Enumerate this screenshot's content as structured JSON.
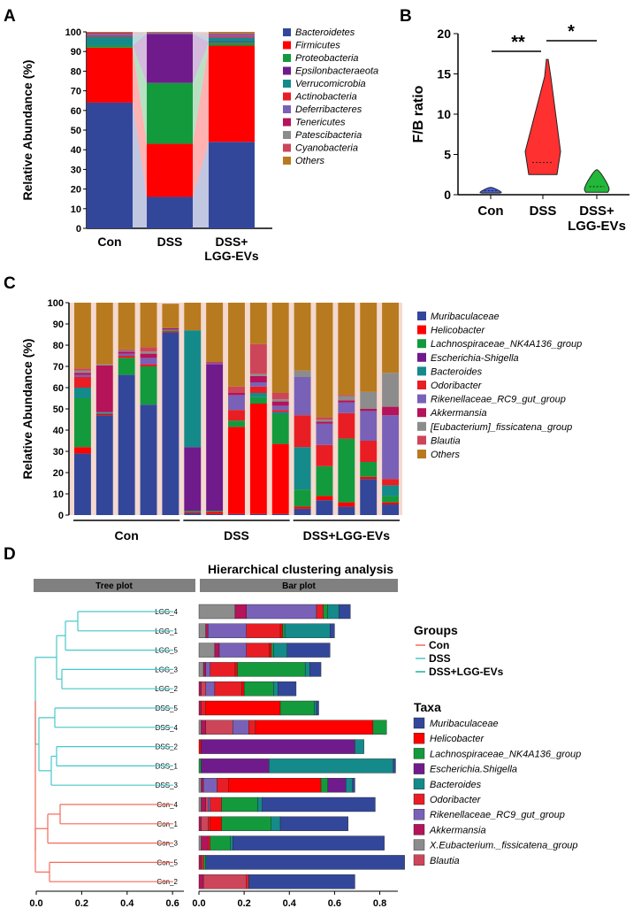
{
  "colors": {
    "Bacteroidetes": "#33479a",
    "Firmicutes": "#ff0000",
    "Proteobacteria": "#139a3c",
    "Epsilonbacteraeota": "#701b8c",
    "Verrucomicrobia": "#148a8a",
    "Actinobacteria": "#e81e24",
    "Deferribacteres": "#7961b8",
    "Tenericutes": "#b5135a",
    "Patescibacteria": "#8c8c8c",
    "Cyanobacteria": "#cd4559",
    "Others": "#b87a1e",
    "Muribaculaceae": "#33479a",
    "Helicobacter": "#ff0000",
    "Lachnospiraceae_NK4A136_group": "#139a3c",
    "Escherichia-Shigella": "#701b8c",
    "Bacteroides": "#148a8a",
    "Odoribacter": "#e81e24",
    "Rikenellaceae_RC9_gut_group": "#7961b8",
    "Akkermansia": "#b5135a",
    "[Eubacterium]_fissicatena_group": "#8c8c8c",
    "Blautia": "#cd4559",
    "Con": "#f36a5a",
    "DSS": "#47c7c9",
    "DSS+LGG-EVs": "#1fb0a3"
  },
  "panels": {
    "A": "A",
    "B": "B",
    "C": "C",
    "D": "D"
  },
  "chart_data": [
    {
      "id": "A",
      "type": "bar",
      "stacked": true,
      "title": "",
      "xlabel": "",
      "ylabel": "Relative Abundance (%)",
      "ylim": [
        0,
        100
      ],
      "yticks": [
        "0",
        "10",
        "20",
        "30",
        "40",
        "50",
        "60",
        "70",
        "80",
        "90",
        "100"
      ],
      "categories": [
        [
          "Con"
        ],
        [
          "DSS"
        ],
        [
          "DSS+",
          "LGG-EVs"
        ]
      ],
      "series": [
        {
          "name": "Bacteroidetes",
          "values": [
            64,
            16,
            44
          ]
        },
        {
          "name": "Firmicutes",
          "values": [
            28,
            27,
            49
          ]
        },
        {
          "name": "Proteobacteria",
          "values": [
            1,
            31,
            1.5
          ]
        },
        {
          "name": "Epsilonbacteraeota",
          "values": [
            0,
            25,
            0.5
          ]
        },
        {
          "name": "Verrucomicrobia",
          "values": [
            4.5,
            0,
            2
          ]
        },
        {
          "name": "Actinobacteria",
          "values": [
            0.5,
            0,
            0.5
          ]
        },
        {
          "name": "Deferribacteres",
          "values": [
            1,
            0.5,
            1
          ]
        },
        {
          "name": "Tenericutes",
          "values": [
            0.5,
            0,
            0.5
          ]
        },
        {
          "name": "Patescibacteria",
          "values": [
            0,
            0,
            0.3
          ]
        },
        {
          "name": "Cyanobacteria",
          "values": [
            0,
            0,
            0
          ]
        },
        {
          "name": "Others",
          "values": [
            0.5,
            0.5,
            0.7
          ]
        }
      ]
    },
    {
      "id": "B",
      "type": "violin",
      "title": "",
      "ylabel": "F/B ratio",
      "ylim": [
        0,
        20
      ],
      "yticks": [
        "0",
        "5",
        "10",
        "15",
        "20"
      ],
      "categories": [
        [
          "Con"
        ],
        [
          "DSS"
        ],
        [
          "DSS+",
          "LGG-EVs"
        ]
      ],
      "groups": [
        {
          "name": "Con",
          "min": 0.2,
          "max": 0.9,
          "median": 0.5,
          "color": "#4a5fd6"
        },
        {
          "name": "DSS",
          "min": 2.5,
          "max": 16.8,
          "median": 4,
          "color": "#ff3030"
        },
        {
          "name": "DSS+LGG-EVs",
          "min": 0.3,
          "max": 3.1,
          "median": 1,
          "color": "#22b83a"
        }
      ],
      "annotations": [
        "**",
        "*"
      ]
    },
    {
      "id": "C",
      "type": "bar",
      "stacked": true,
      "title": "",
      "ylabel": "Relative Abundance (%)",
      "ylim": [
        0,
        100
      ],
      "yticks": [
        "0",
        "10",
        "20",
        "30",
        "40",
        "50",
        "60",
        "70",
        "80",
        "90",
        "100"
      ],
      "group_labels": [
        "Con",
        "DSS",
        "DSS+LGG-EVs"
      ],
      "series": [
        {
          "name": "Muribaculaceae",
          "values": [
            29,
            47,
            66,
            52,
            86,
            1,
            0.5,
            0.5,
            0.5,
            0.5,
            3,
            7,
            4,
            17,
            5
          ]
        },
        {
          "name": "Helicobacter",
          "values": [
            3,
            0.5,
            0,
            0,
            0.5,
            0.5,
            1,
            41,
            52,
            33,
            1,
            2,
            2,
            1,
            1
          ]
        },
        {
          "name": "Lachnospiraceae_NK4A136_group",
          "values": [
            23,
            0.5,
            8,
            18,
            0.5,
            0.5,
            0.5,
            3,
            3,
            14,
            8,
            14,
            30,
            7,
            3
          ]
        },
        {
          "name": "Escherichia-Shigella",
          "values": [
            0,
            0,
            0,
            0,
            0,
            30,
            69,
            0,
            0,
            0,
            0,
            0,
            0,
            0,
            0
          ]
        },
        {
          "name": "Bacteroides",
          "values": [
            5,
            0,
            0,
            0,
            0,
            55,
            0,
            0,
            2,
            1,
            20,
            0,
            0,
            0,
            5
          ]
        },
        {
          "name": "Odoribacter",
          "values": [
            5,
            0,
            1,
            1,
            0,
            0,
            0,
            5,
            3,
            1,
            15,
            10,
            12,
            10,
            3
          ]
        },
        {
          "name": "Rikenellaceae_RC9_gut_group",
          "values": [
            1,
            0.5,
            1,
            3,
            0.5,
            0,
            0.5,
            7,
            2,
            2,
            18,
            10,
            5,
            14,
            30
          ]
        },
        {
          "name": "Akkermansia",
          "values": [
            1,
            22,
            1,
            2,
            0.5,
            0,
            0.5,
            1,
            3,
            2,
            0,
            1,
            1,
            1,
            4
          ]
        },
        {
          "name": "[Eubacterium]_fissicatena_group",
          "values": [
            1,
            0.5,
            0.5,
            1,
            0,
            0,
            0,
            0,
            1,
            1,
            3,
            1,
            2,
            8,
            16
          ]
        },
        {
          "name": "Blautia",
          "values": [
            1,
            0,
            0.5,
            2,
            0,
            0,
            0,
            3,
            14,
            3,
            0,
            1,
            0.5,
            0,
            0
          ]
        },
        {
          "name": "Others",
          "values": [
            31,
            29,
            22,
            21,
            11.5,
            13,
            28,
            39.5,
            19.5,
            42.5,
            32,
            54,
            43.5,
            42,
            33
          ]
        }
      ]
    },
    {
      "id": "D",
      "type": "bar",
      "stacked": true,
      "orientation": "horizontal",
      "title": "Hierarchical clustering analysis",
      "tree_label": "Tree plot",
      "bar_label": "Bar plot",
      "xticks": [
        "0.0",
        "0.2",
        "0.4",
        "0.6",
        "0.8"
      ],
      "xlim": [
        0,
        0.88
      ],
      "tree_ticks": [
        "0.0",
        "0.2",
        "0.4",
        "0.6"
      ],
      "tree_xlim": [
        0,
        0.65
      ],
      "categories": [
        "LGG_4",
        "LGG_1",
        "LGG_5",
        "LGG_3",
        "LGG_2",
        "DSS_5",
        "DSS_4",
        "DSS_2",
        "DSS_1",
        "DSS_3",
        "Con_4",
        "Con_1",
        "Con_3",
        "Con_5",
        "Con_2"
      ],
      "row_groups": [
        "DSS+LGG-EVs",
        "DSS+LGG-EVs",
        "DSS+LGG-EVs",
        "DSS+LGG-EVs",
        "DSS+LGG-EVs",
        "DSS",
        "DSS",
        "DSS",
        "DSS",
        "DSS",
        "Con",
        "Con",
        "Con",
        "Con",
        "Con"
      ],
      "taxa_order": [
        "X.Eubacterium._fissicatena_group",
        "Akkermansia",
        "Blautia",
        "Rikenellaceae_RC9_gut_group",
        "Odoribacter",
        "Helicobacter",
        "Lachnospiraceae_NK4A136_group",
        "Escherichia.Shigella",
        "Bacteroides",
        "Muribaculaceae"
      ],
      "rows": [
        [
          0.16,
          0.05,
          0,
          0.31,
          0.03,
          0,
          0.02,
          0,
          0.05,
          0.05
        ],
        [
          0.03,
          0.01,
          0,
          0.17,
          0.15,
          0.01,
          0.01,
          0,
          0.2,
          0.02
        ],
        [
          0.07,
          0.02,
          0,
          0.12,
          0.1,
          0.01,
          0.01,
          0,
          0.06,
          0.19
        ],
        [
          0.02,
          0.01,
          0,
          0.02,
          0.11,
          0.01,
          0.3,
          0,
          0.02,
          0.05
        ],
        [
          0,
          0.01,
          0.02,
          0.04,
          0.12,
          0.01,
          0.13,
          0,
          0.02,
          0.08
        ],
        [
          0,
          0.01,
          0,
          0,
          0.02,
          0.33,
          0.15,
          0,
          0.01,
          0.01
        ],
        [
          0.01,
          0.02,
          0.12,
          0.07,
          0.03,
          0.52,
          0.06,
          0,
          0,
          0
        ],
        [
          0,
          0,
          0,
          0,
          0,
          0.01,
          0,
          0.68,
          0.04,
          0
        ],
        [
          0,
          0,
          0,
          0,
          0,
          0,
          0.01,
          0.3,
          0.55,
          0.01
        ],
        [
          0.01,
          0.01,
          0,
          0.06,
          0.05,
          0.41,
          0.03,
          0.08,
          0.03,
          0.01
        ],
        [
          0.01,
          0.02,
          0.01,
          0.01,
          0.05,
          0,
          0.16,
          0,
          0.02,
          0.5
        ],
        [
          0,
          0.01,
          0.03,
          0,
          0.01,
          0.05,
          0.22,
          0,
          0.04,
          0.3
        ],
        [
          0.01,
          0.03,
          0,
          0,
          0.01,
          0,
          0.09,
          0,
          0.01,
          0.67
        ],
        [
          0,
          0.01,
          0,
          0,
          0.01,
          0,
          0.01,
          0,
          0,
          0.88
        ],
        [
          0,
          0.02,
          0.19,
          0,
          0.01,
          0,
          0,
          0,
          0,
          0.47
        ]
      ],
      "groups_legend_title": "Groups",
      "groups_legend": [
        "Con",
        "DSS",
        "DSS+LGG-EVs"
      ],
      "taxa_legend_title": "Taxa",
      "taxa_legend": [
        "Muribaculaceae",
        "Helicobacter",
        "Lachnospiraceae_NK4A136_group",
        "Escherichia.Shigella",
        "Bacteroides",
        "Odoribacter",
        "Rikenellaceae_RC9_gut_group",
        "Akkermansia",
        "X.Eubacterium._fissicatena_group",
        "Blautia"
      ]
    }
  ]
}
